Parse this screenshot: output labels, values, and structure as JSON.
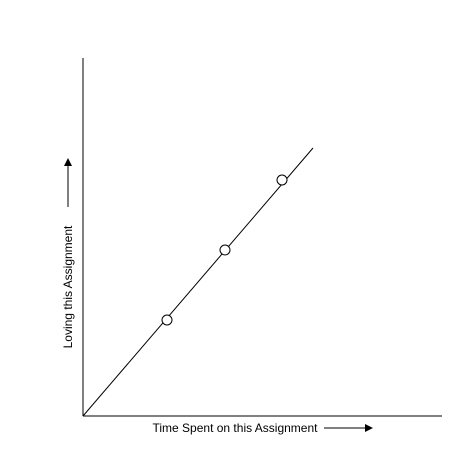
{
  "chart_data": {
    "type": "line",
    "title": "",
    "xlabel": "Time Spent on this Assignment",
    "ylabel": "Loving this Assignment",
    "x_ticks": [],
    "y_ticks": [],
    "grid": false,
    "legend": "none",
    "series": [
      {
        "line_start": {
          "x": 0,
          "y": 0
        },
        "line_end": {
          "x": 230,
          "y": 268
        },
        "markers": [
          {
            "x": 84,
            "y": 96
          },
          {
            "x": 142,
            "y": 166
          },
          {
            "x": 199,
            "y": 236
          }
        ]
      }
    ],
    "colors": {
      "line": "#000000",
      "marker_fill": "#ffffff",
      "marker_stroke": "#000000"
    }
  }
}
